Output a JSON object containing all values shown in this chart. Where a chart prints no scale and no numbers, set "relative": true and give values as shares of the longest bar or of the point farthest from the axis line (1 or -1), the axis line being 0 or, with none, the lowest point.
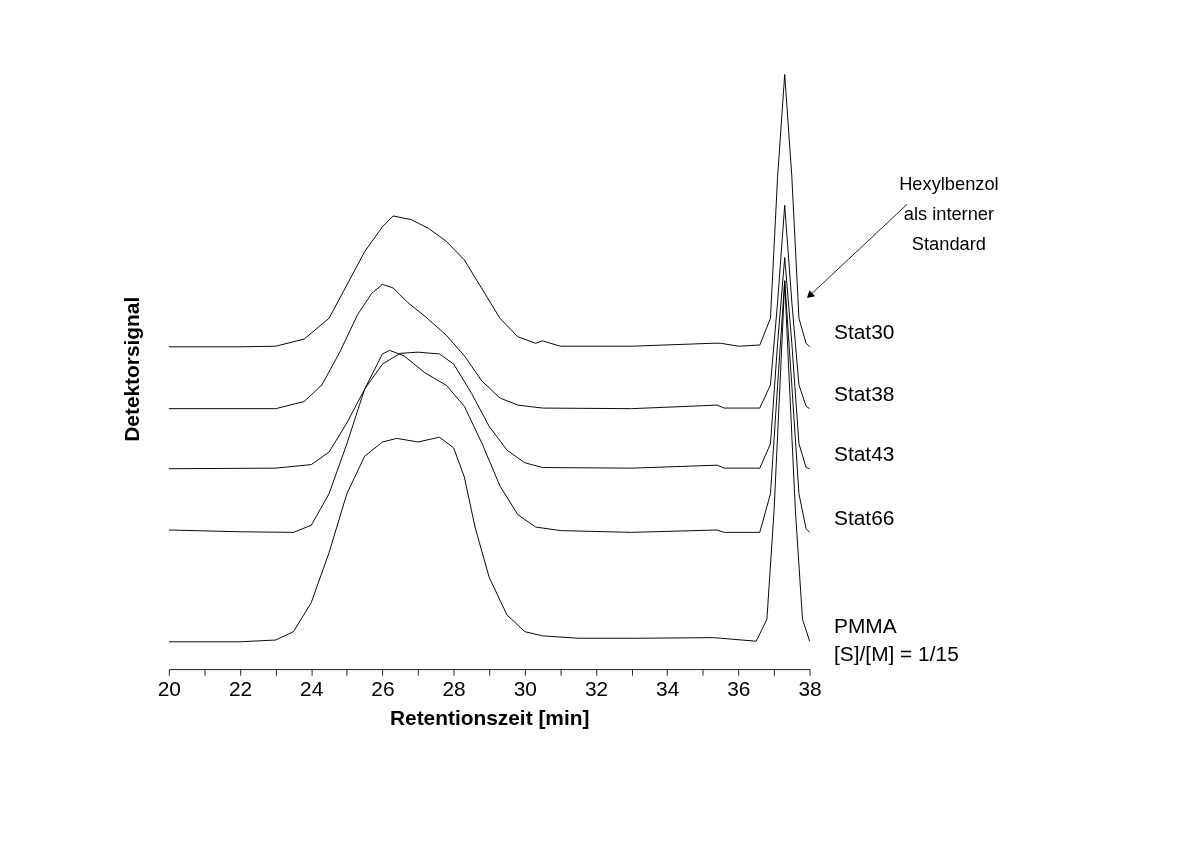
{
  "chart_data": {
    "type": "line",
    "relative": true,
    "xlabel": "Retentionszeit [min]",
    "ylabel": "Detektorsignal",
    "xlim": [
      20,
      38
    ],
    "xticks": [
      20,
      {
        "value": 21,
        "label": null
      },
      22,
      {
        "value": 23,
        "label": null
      },
      24,
      {
        "value": 25,
        "label": null
      },
      26,
      {
        "value": 27,
        "label": null
      },
      28,
      {
        "value": 29,
        "label": null
      },
      30,
      {
        "value": 31,
        "label": null
      },
      32,
      {
        "value": 33,
        "label": null
      },
      34,
      {
        "value": 35,
        "label": null
      },
      36,
      {
        "value": 37,
        "label": null
      },
      38
    ],
    "tick_labels": "x",
    "grid": false,
    "legend": false,
    "marker": "none",
    "line_style": "solid",
    "series": [
      {
        "name": "Stat30",
        "color": "#000000",
        "x": [
          20,
          22,
          23,
          23.8,
          24.5,
          25,
          25.5,
          26,
          26.3,
          26.8,
          27.3,
          27.8,
          28.3,
          28.8,
          29.3,
          29.8,
          30.3,
          30.5,
          31,
          33,
          35.3,
          35.5,
          36,
          36.6,
          36.9,
          37.1,
          37.3,
          37.5,
          37.7,
          37.9,
          38
        ],
        "values": [
          0.542,
          0.542,
          0.543,
          0.555,
          0.59,
          0.646,
          0.702,
          0.744,
          0.762,
          0.756,
          0.741,
          0.719,
          0.688,
          0.639,
          0.59,
          0.559,
          0.548,
          0.552,
          0.543,
          0.543,
          0.548,
          0.548,
          0.543,
          0.545,
          0.59,
          0.828,
          1.0,
          0.828,
          0.59,
          0.548,
          0.542
        ]
      },
      {
        "name": "Stat38",
        "color": "#000000",
        "x": [
          20,
          23,
          23.8,
          24.3,
          24.8,
          25.3,
          25.7,
          26,
          26.3,
          26.7,
          27.2,
          27.8,
          28.3,
          28.8,
          29.3,
          29.8,
          30.5,
          33,
          35.4,
          35.6,
          36.6,
          36.9,
          37.1,
          37.3,
          37.5,
          37.7,
          37.9,
          38
        ],
        "values": [
          0.438,
          0.438,
          0.45,
          0.478,
          0.533,
          0.596,
          0.632,
          0.647,
          0.641,
          0.617,
          0.593,
          0.561,
          0.527,
          0.484,
          0.456,
          0.444,
          0.439,
          0.438,
          0.444,
          0.439,
          0.439,
          0.478,
          0.617,
          0.78,
          0.617,
          0.478,
          0.442,
          0.438
        ]
      },
      {
        "name": "Stat43",
        "color": "#000000",
        "x": [
          20,
          23,
          24,
          24.5,
          25,
          25.5,
          26,
          26.5,
          27,
          27.6,
          28,
          28.5,
          29,
          29.5,
          30,
          30.5,
          33,
          35.4,
          35.6,
          36.6,
          36.9,
          37.1,
          37.3,
          37.5,
          37.7,
          37.9,
          38
        ],
        "values": [
          0.337,
          0.338,
          0.344,
          0.365,
          0.414,
          0.471,
          0.513,
          0.531,
          0.533,
          0.53,
          0.513,
          0.464,
          0.408,
          0.368,
          0.347,
          0.339,
          0.338,
          0.343,
          0.338,
          0.338,
          0.379,
          0.548,
          0.692,
          0.548,
          0.379,
          0.339,
          0.337
        ]
      },
      {
        "name": "Stat66",
        "color": "#000000",
        "x": [
          20,
          22,
          23.5,
          24,
          24.5,
          25,
          25.5,
          26,
          26.2,
          26.6,
          27.2,
          27.8,
          28.3,
          28.8,
          29.3,
          29.8,
          30.3,
          31,
          33,
          35.4,
          35.6,
          36.6,
          36.9,
          37.1,
          37.3,
          37.5,
          37.7,
          37.9,
          38
        ],
        "values": [
          0.234,
          0.231,
          0.23,
          0.242,
          0.295,
          0.379,
          0.471,
          0.53,
          0.536,
          0.527,
          0.498,
          0.477,
          0.442,
          0.379,
          0.308,
          0.26,
          0.239,
          0.233,
          0.23,
          0.234,
          0.23,
          0.23,
          0.295,
          0.477,
          0.653,
          0.477,
          0.295,
          0.236,
          0.23
        ]
      },
      {
        "name": "PMMA",
        "color": "#000000",
        "x": [
          20,
          22,
          23,
          23.5,
          24,
          24.5,
          25,
          25.5,
          26,
          26.4,
          27,
          27.6,
          28,
          28.3,
          28.6,
          29,
          29.5,
          30,
          30.5,
          31.5,
          33.2,
          35.3,
          35.5,
          36.5,
          36.8,
          37,
          37.2,
          37.3,
          37.4,
          37.6,
          37.8,
          38
        ],
        "values": [
          0.046,
          0.046,
          0.049,
          0.063,
          0.112,
          0.196,
          0.295,
          0.358,
          0.382,
          0.388,
          0.382,
          0.39,
          0.372,
          0.323,
          0.239,
          0.154,
          0.091,
          0.063,
          0.056,
          0.052,
          0.052,
          0.053,
          0.052,
          0.047,
          0.084,
          0.266,
          0.52,
          0.653,
          0.52,
          0.266,
          0.084,
          0.047
        ]
      }
    ],
    "annotations": [
      "[S]/[M] = 1/15",
      {
        "text": "Hexylbenzol als interner Standard",
        "x": 38.0,
        "y": 0.628
      }
    ]
  }
}
